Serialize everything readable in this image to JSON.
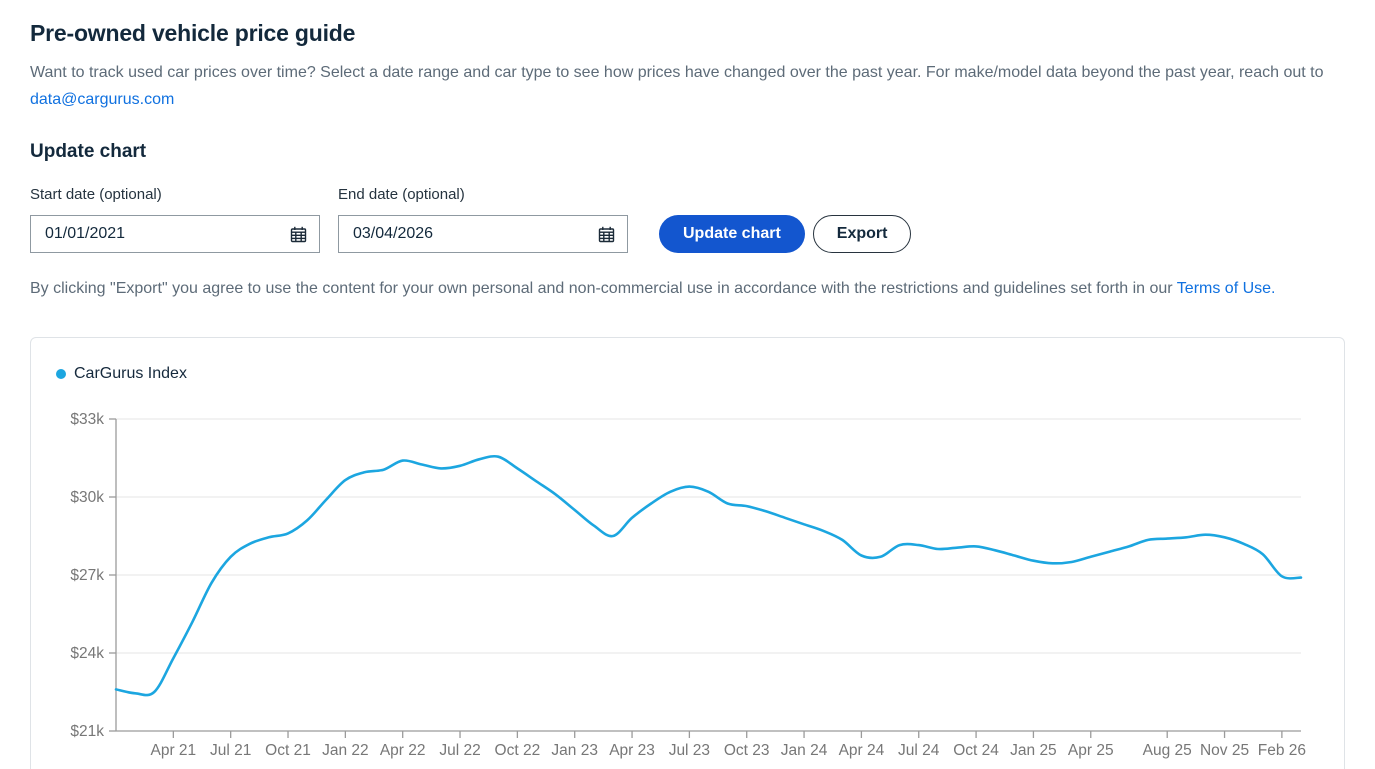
{
  "page": {
    "title": "Pre-owned vehicle price guide",
    "description_before_link": "Want to track used car prices over time? Select a date range and car type to see how prices have changed over the past year. For make/model data beyond the past year, reach out to ",
    "description_link": "data@cargurus.com"
  },
  "form": {
    "heading": "Update chart",
    "start_date": {
      "label": "Start date (optional)",
      "value": "01/01/2021"
    },
    "end_date": {
      "label": "End date (optional)",
      "value": "03/04/2026"
    },
    "calendar_icon": "calendar-icon",
    "update_button_label": "Update chart",
    "export_button_label": "Export",
    "export_note_before_link": "By clicking \"Export\" you agree to use the content for your own personal and non-commercial use in accordance with the restrictions and guidelines set forth in our ",
    "export_note_link": "Terms of Use."
  },
  "chart_data": {
    "type": "line",
    "title": "",
    "unit": "USD (thousands)",
    "x_start": "2021-01",
    "x_interval": "month",
    "x_end": "2026-03",
    "series": [
      {
        "name": "CarGurus Index",
        "color": "#1ca6e0",
        "values": [
          22.6,
          22.45,
          22.5,
          23.8,
          25.2,
          26.7,
          27.7,
          28.2,
          28.45,
          28.6,
          29.1,
          29.9,
          30.65,
          30.95,
          31.05,
          31.4,
          31.25,
          31.1,
          31.2,
          31.45,
          31.55,
          31.1,
          30.6,
          30.1,
          29.5,
          28.9,
          28.5,
          29.2,
          29.75,
          30.2,
          30.4,
          30.2,
          29.75,
          29.65,
          29.45,
          29.2,
          28.95,
          28.7,
          28.35,
          27.75,
          27.7,
          28.15,
          28.15,
          28.0,
          28.05,
          28.1,
          27.95,
          27.75,
          27.55,
          27.45,
          27.5,
          27.7,
          27.9,
          28.1,
          28.35,
          28.4,
          28.45,
          28.55,
          28.45,
          28.2,
          27.8,
          26.95,
          26.9
        ]
      }
    ],
    "legend": [
      {
        "name": "CarGurus Index",
        "color": "#1ca6e0"
      }
    ],
    "ylim": [
      21,
      33
    ],
    "y_ticks": [
      {
        "label": "$33k",
        "value": 33
      },
      {
        "label": "$30k",
        "value": 30
      },
      {
        "label": "$27k",
        "value": 27
      },
      {
        "label": "$24k",
        "value": 24
      },
      {
        "label": "$21k",
        "value": 21
      }
    ],
    "x_ticks": [
      {
        "label": "Apr 21",
        "month_index": 3
      },
      {
        "label": "Jul 21",
        "month_index": 6
      },
      {
        "label": "Oct 21",
        "month_index": 9
      },
      {
        "label": "Jan 22",
        "month_index": 12
      },
      {
        "label": "Apr 22",
        "month_index": 15
      },
      {
        "label": "Jul 22",
        "month_index": 18
      },
      {
        "label": "Oct 22",
        "month_index": 21
      },
      {
        "label": "Jan 23",
        "month_index": 24
      },
      {
        "label": "Apr 23",
        "month_index": 27
      },
      {
        "label": "Jul 23",
        "month_index": 30
      },
      {
        "label": "Oct 23",
        "month_index": 33
      },
      {
        "label": "Jan 24",
        "month_index": 36
      },
      {
        "label": "Apr 24",
        "month_index": 39
      },
      {
        "label": "Jul 24",
        "month_index": 42
      },
      {
        "label": "Oct 24",
        "month_index": 45
      },
      {
        "label": "Jan 25",
        "month_index": 48
      },
      {
        "label": "Apr 25",
        "month_index": 51
      },
      {
        "label": "Aug 25",
        "month_index": 55
      },
      {
        "label": "Nov 25",
        "month_index": 58
      },
      {
        "label": "Feb 26",
        "month_index": 61
      }
    ],
    "layout": {
      "grid": "horizontal",
      "legend_position": "top-left",
      "axis_color": "#9b9b9b",
      "grid_color": "#e6e6e6",
      "tick_label_color": "#777777"
    }
  }
}
